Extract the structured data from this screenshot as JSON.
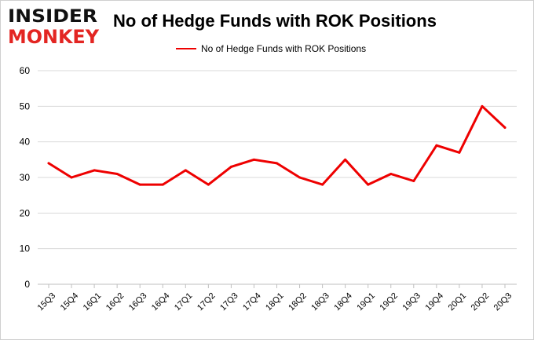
{
  "logo": {
    "line1": "INSIDER",
    "line2": "MONKEY",
    "colors": {
      "dark": "#111111",
      "accent": "#e32522"
    }
  },
  "chart_data": {
    "type": "line",
    "title": "No of Hedge Funds with ROK Positions",
    "xlabel": "",
    "ylabel": "",
    "ylim": [
      0,
      60
    ],
    "yticks": [
      0,
      10,
      20,
      30,
      40,
      50,
      60
    ],
    "grid": true,
    "legend": "top-center",
    "categories": [
      "15Q3",
      "15Q4",
      "16Q1",
      "16Q2",
      "16Q3",
      "16Q4",
      "17Q1",
      "17Q2",
      "17Q3",
      "17Q4",
      "18Q1",
      "18Q2",
      "18Q3",
      "18Q4",
      "19Q1",
      "19Q2",
      "19Q3",
      "19Q4",
      "20Q1",
      "20Q2",
      "20Q3"
    ],
    "series": [
      {
        "name": "No of Hedge Funds with ROK Positions",
        "color": "#ee0000",
        "values": [
          34,
          30,
          32,
          31,
          28,
          28,
          32,
          28,
          33,
          35,
          34,
          30,
          28,
          35,
          28,
          31,
          29,
          39,
          37,
          50,
          44
        ]
      }
    ]
  }
}
